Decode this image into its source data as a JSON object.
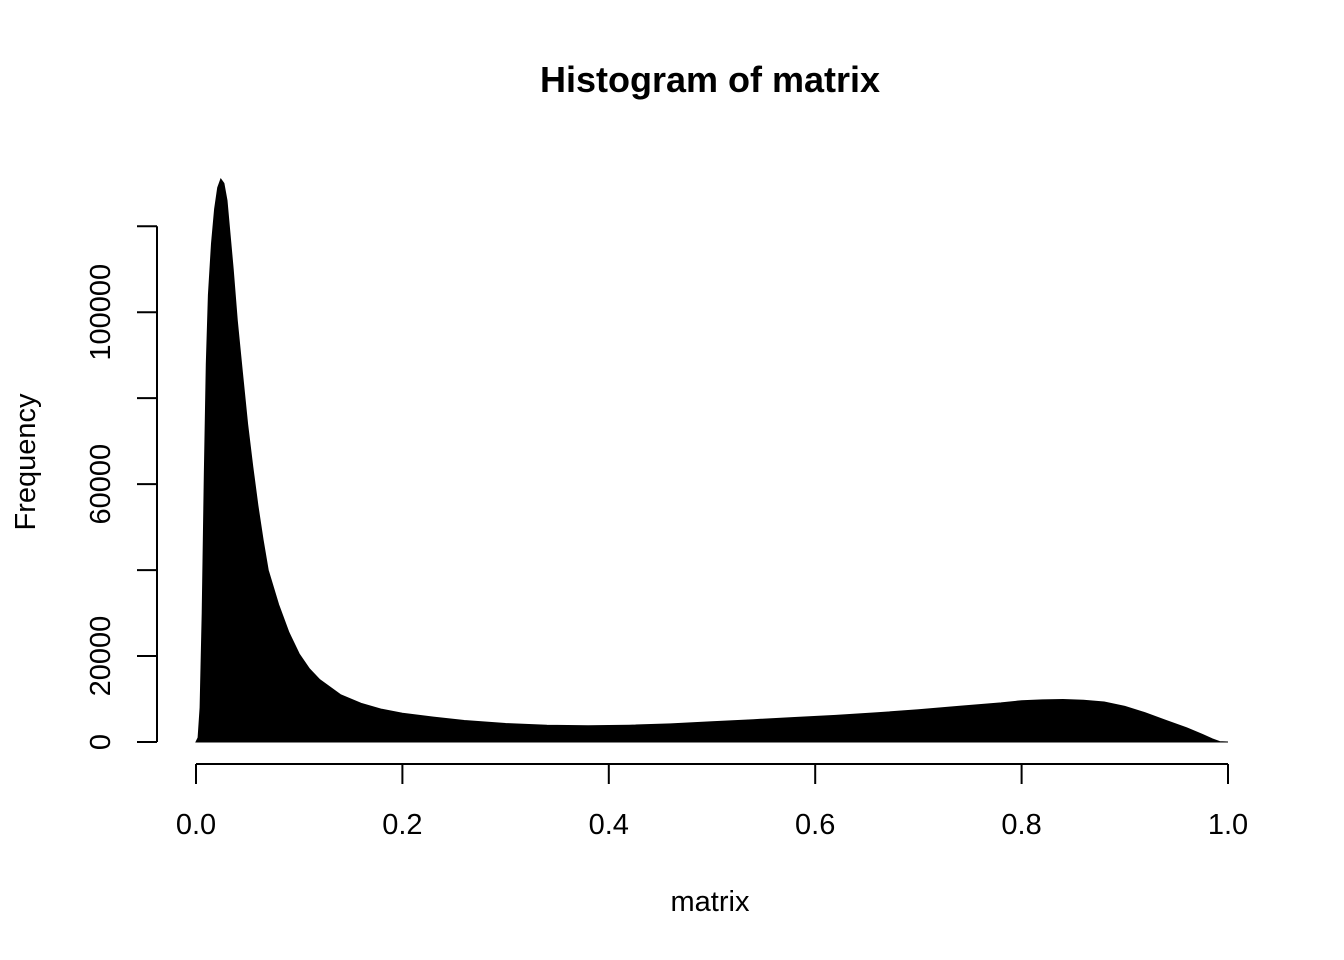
{
  "chart_data": {
    "type": "area",
    "title": "Histogram of matrix",
    "xlabel": "matrix",
    "ylabel": "Frequency",
    "xlim": [
      0.0,
      1.0
    ],
    "ylim": [
      0,
      131000
    ],
    "x_ticks": [
      0.0,
      0.2,
      0.4,
      0.6,
      0.8,
      1.0
    ],
    "x_tick_labels": [
      "0.0",
      "0.2",
      "0.4",
      "0.6",
      "0.8",
      "1.0"
    ],
    "y_ticks": [
      0,
      20000,
      40000,
      60000,
      80000,
      100000,
      120000
    ],
    "y_tick_labels": [
      "0",
      "20000",
      "",
      "60000",
      "",
      "100000",
      ""
    ],
    "fill_color": "#000000",
    "grid": false,
    "series": [
      {
        "x": [
          0.0,
          0.002,
          0.004,
          0.006,
          0.008,
          0.01,
          0.012,
          0.015,
          0.018,
          0.021,
          0.024,
          0.027,
          0.03,
          0.033,
          0.036,
          0.04,
          0.045,
          0.05,
          0.055,
          0.06,
          0.065,
          0.07,
          0.08,
          0.09,
          0.1,
          0.11,
          0.12,
          0.14,
          0.16,
          0.18,
          0.2,
          0.23,
          0.26,
          0.3,
          0.34,
          0.38,
          0.42,
          0.46,
          0.5,
          0.54,
          0.58,
          0.62,
          0.66,
          0.7,
          0.74,
          0.78,
          0.8,
          0.82,
          0.84,
          0.86,
          0.88,
          0.9,
          0.92,
          0.94,
          0.96,
          0.975,
          0.985,
          0.992,
          1.0
        ],
        "y": [
          0,
          1000,
          8000,
          30000,
          62000,
          88000,
          104000,
          116000,
          124000,
          129000,
          131000,
          130000,
          126000,
          118000,
          110000,
          98000,
          86000,
          74000,
          64000,
          55000,
          47000,
          40000,
          32000,
          25500,
          20500,
          17000,
          14500,
          11000,
          9000,
          7600,
          6700,
          5800,
          5000,
          4300,
          3900,
          3800,
          3900,
          4200,
          4700,
          5200,
          5700,
          6200,
          6800,
          7500,
          8300,
          9100,
          9600,
          9800,
          9900,
          9700,
          9300,
          8300,
          6800,
          5000,
          3300,
          1800,
          700,
          100,
          0
        ]
      }
    ]
  }
}
